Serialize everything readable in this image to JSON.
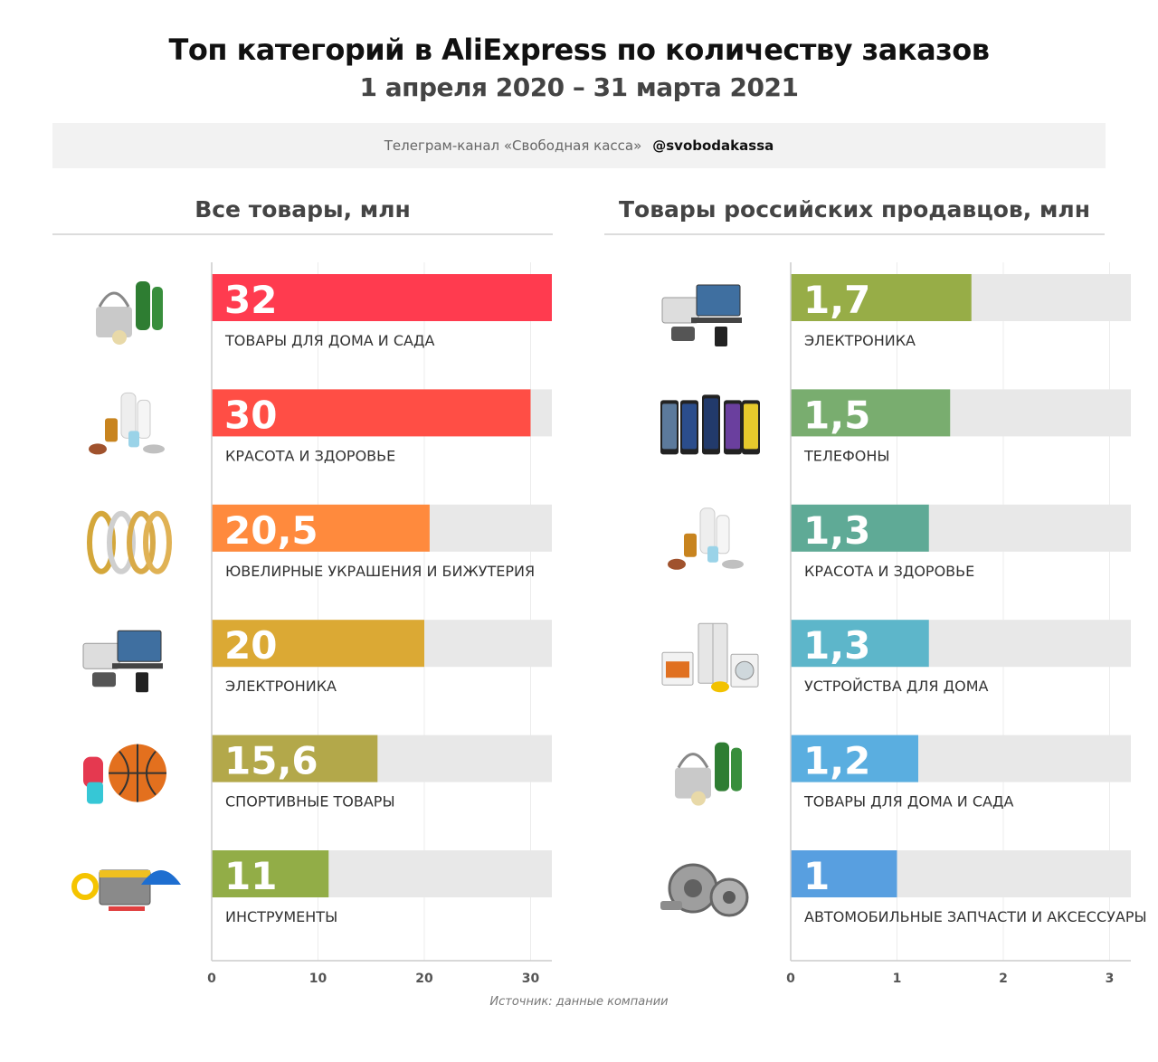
{
  "header": {
    "title": "Топ категорий в AliExpress по количеству заказов",
    "subtitle": "1 апреля 2020 – 31 марта 2021"
  },
  "banner": {
    "text": "Телеграм-канал «Свободная касса»",
    "handle": "@svobodakassa"
  },
  "footer": {
    "source": "Источник: данные компании"
  },
  "chart_data": [
    {
      "type": "bar",
      "orientation": "horizontal",
      "title": "Все товары, млн",
      "xlim": [
        0,
        32
      ],
      "ticks": [
        0,
        10,
        20,
        30
      ],
      "grid": true,
      "categories": [
        "ТОВАРЫ ДЛЯ ДОМА И САДА",
        "КРАСОТА И ЗДОРОВЬЕ",
        "ЮВЕЛИРНЫЕ УКРАШЕНИЯ И БИЖУТЕРИЯ",
        "ЭЛЕКТРОНИКА",
        "СПОРТИВНЫЕ ТОВАРЫ",
        "ИНСТРУМЕНТЫ"
      ],
      "values": [
        32,
        30,
        20.5,
        20,
        15.6,
        11
      ],
      "value_labels": [
        "32",
        "30",
        "20,5",
        "20",
        "15,6",
        "11"
      ],
      "colors": [
        "#ff3b4f",
        "#ff4e45",
        "#ff8a3d",
        "#dba934",
        "#b3a84a",
        "#92ad47"
      ],
      "icons": [
        "garden-tools-icon",
        "cosmetics-icon",
        "rings-icon",
        "electronics-icon",
        "sports-icon",
        "tools-icon"
      ]
    },
    {
      "type": "bar",
      "orientation": "horizontal",
      "title": "Товары российских продавцов, млн",
      "xlim": [
        0,
        3.2
      ],
      "ticks": [
        0,
        1,
        2,
        3
      ],
      "grid": true,
      "categories": [
        "ЭЛЕКТРОНИКА",
        "ТЕЛЕФОНЫ",
        "КРАСОТА И ЗДОРОВЬЕ",
        "УСТРОЙСТВА ДЛЯ ДОМА",
        "ТОВАРЫ ДЛЯ ДОМА И САДА",
        "АВТОМОБИЛЬНЫЕ ЗАПЧАСТИ И АКСЕССУАРЫ"
      ],
      "values": [
        1.7,
        1.5,
        1.3,
        1.3,
        1.2,
        1
      ],
      "value_labels": [
        "1,7",
        "1,5",
        "1,3",
        "1,3",
        "1,2",
        "1"
      ],
      "colors": [
        "#97ad47",
        "#79ad6f",
        "#5faa96",
        "#5db6ca",
        "#5aaee0",
        "#589fe0"
      ],
      "icons": [
        "electronics-icon",
        "phones-icon",
        "cosmetics-icon",
        "appliances-icon",
        "garden-tools-icon",
        "auto-parts-icon"
      ]
    }
  ]
}
